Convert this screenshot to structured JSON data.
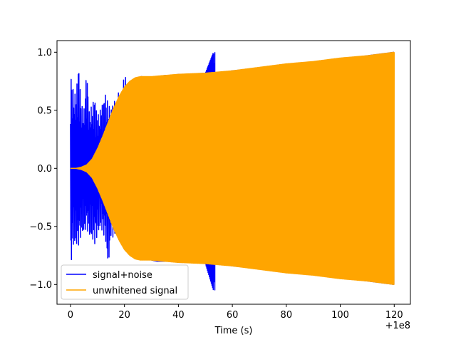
{
  "chart_data": {
    "type": "line",
    "title": "",
    "xlabel": "Time (s)",
    "ylabel": "",
    "x_offset_label": "+1e8",
    "xlim": [
      -5,
      126
    ],
    "ylim": [
      -1.17,
      1.1
    ],
    "xticks": [
      0,
      20,
      40,
      60,
      80,
      100,
      120
    ],
    "xtick_labels": [
      "0",
      "20",
      "40",
      "60",
      "80",
      "100",
      "120"
    ],
    "yticks": [
      1.0,
      0.5,
      0.0,
      -0.5,
      -1.0
    ],
    "ytick_labels": [
      "1.0",
      "0.5",
      "0.0",
      "−0.5",
      "−1.0"
    ],
    "grid": false,
    "legend_position": "lower-left",
    "series": [
      {
        "name": "signal+noise",
        "color": "#0000ff",
        "envelope": {
          "x": [
            0,
            1,
            2,
            3,
            4,
            5,
            6,
            7,
            8,
            9,
            10,
            11,
            12,
            13,
            14,
            15,
            16,
            17,
            18,
            19,
            20,
            21,
            22,
            23,
            24,
            25,
            26,
            27,
            28,
            30,
            32,
            35,
            38,
            40,
            45,
            50,
            53,
            53.5,
            54,
            60,
            80,
            100,
            120
          ],
          "upper": [
            0.85,
            0.68,
            0.62,
            0.93,
            0.55,
            0.5,
            0.88,
            0.48,
            0.55,
            0.62,
            0.45,
            0.5,
            0.58,
            0.65,
            0.55,
            0.52,
            0.6,
            0.55,
            0.7,
            0.62,
            0.83,
            0.72,
            0.78,
            0.6,
            0.82,
            0.75,
            0.8,
            0.78,
            0.75,
            0.78,
            0.79,
            0.8,
            0.8,
            0.81,
            0.81,
            0.82,
            1.0,
            0.82,
            0.82,
            0.84,
            0.89,
            0.94,
            1.0
          ],
          "lower": [
            -0.85,
            -0.68,
            -0.66,
            -0.66,
            -0.58,
            -0.55,
            -0.52,
            -0.58,
            -0.62,
            -0.65,
            -0.58,
            -0.52,
            -0.55,
            -0.62,
            -0.88,
            -0.58,
            -0.6,
            -0.55,
            -0.62,
            -0.58,
            -0.7,
            -0.72,
            -0.75,
            -0.6,
            -0.78,
            -0.75,
            -0.78,
            -0.78,
            -0.77,
            -0.79,
            -0.8,
            -0.8,
            -0.8,
            -0.81,
            -0.81,
            -0.82,
            -1.05,
            -0.82,
            -0.82,
            -0.84,
            -0.89,
            -0.94,
            -1.0
          ]
        }
      },
      {
        "name": "unwhitened signal",
        "color": "#ffa500",
        "envelope": {
          "x": [
            0,
            2,
            4,
            6,
            8,
            10,
            12,
            14,
            16,
            18,
            20,
            22,
            24,
            26,
            28,
            30,
            35,
            40,
            50,
            60,
            70,
            80,
            90,
            100,
            110,
            120
          ],
          "amplitude": [
            0.0,
            0.0,
            0.01,
            0.03,
            0.08,
            0.17,
            0.28,
            0.4,
            0.52,
            0.62,
            0.7,
            0.75,
            0.78,
            0.79,
            0.79,
            0.79,
            0.8,
            0.81,
            0.82,
            0.84,
            0.87,
            0.9,
            0.92,
            0.95,
            0.97,
            1.0
          ]
        }
      }
    ]
  }
}
